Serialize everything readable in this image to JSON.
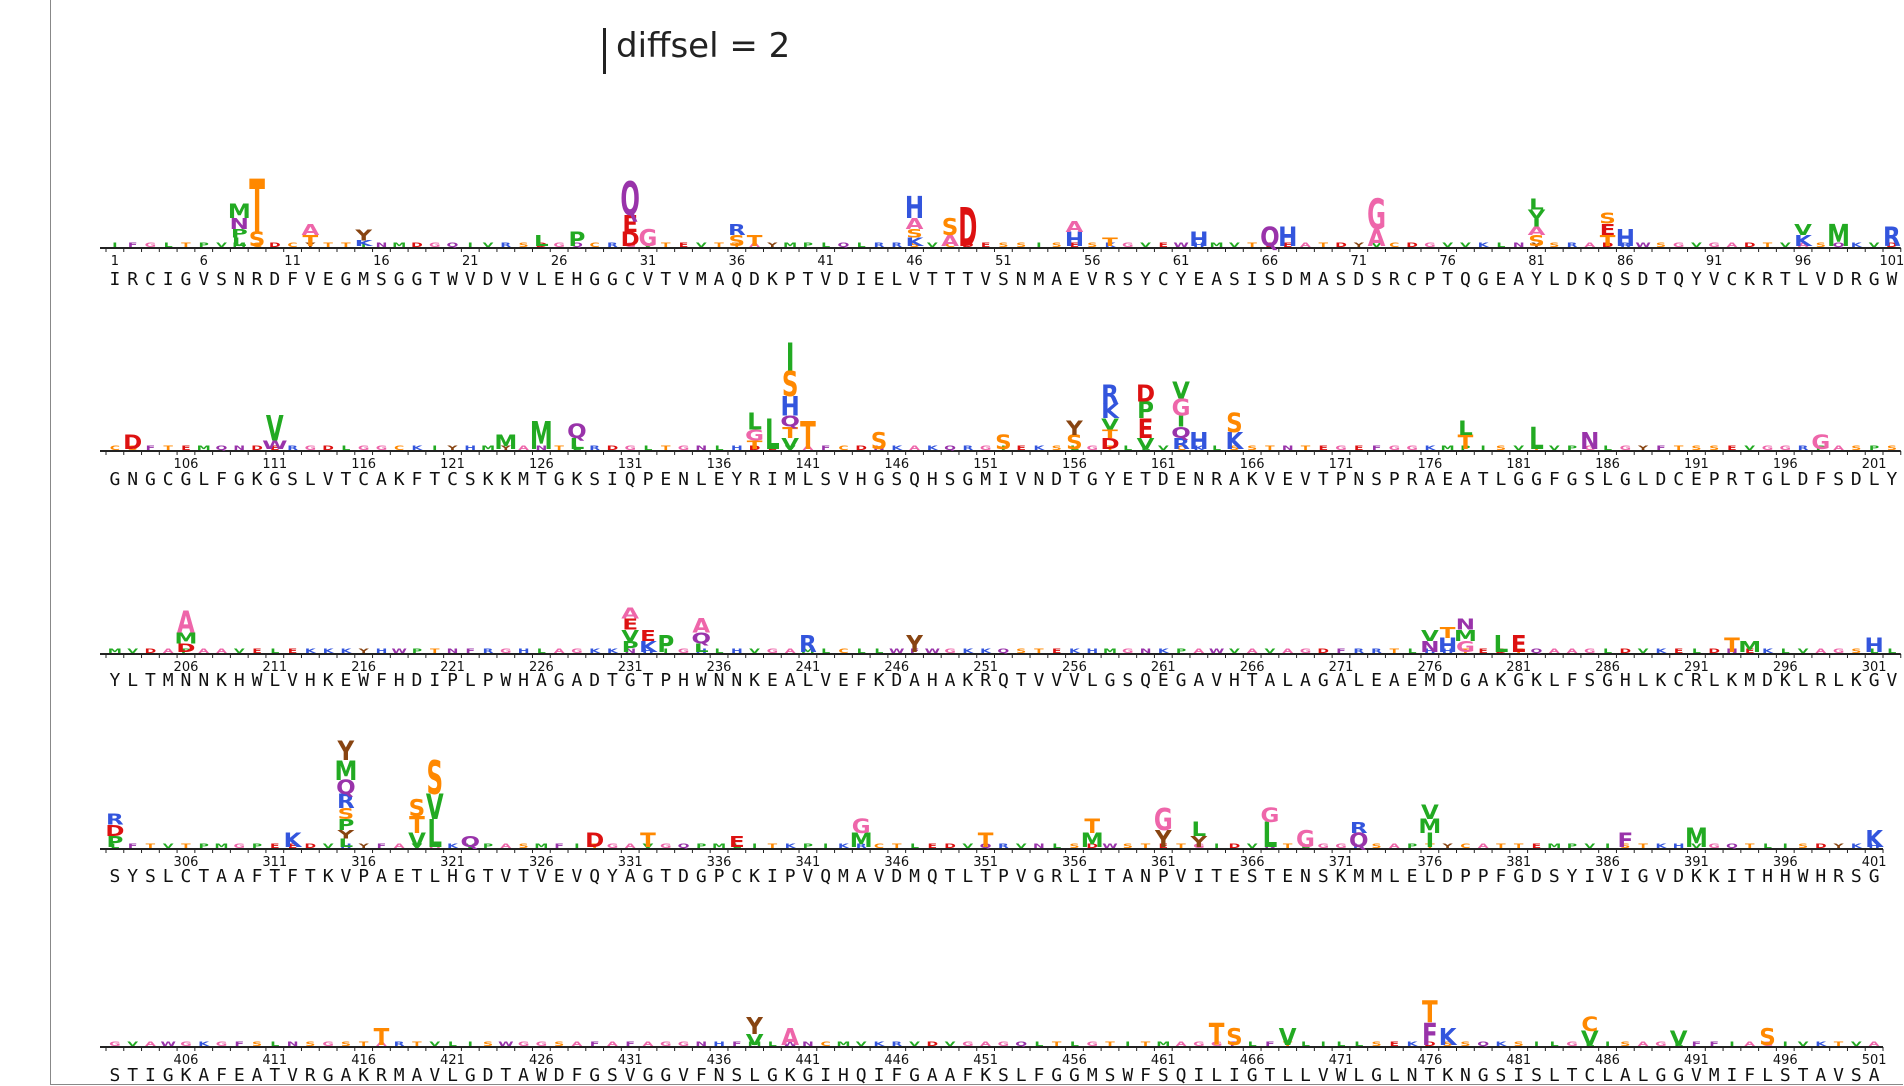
{
  "scale_label": "diffsel = 2",
  "rows": [
    {
      "start": 1,
      "sequence": "IRCIGVSNRDFVEGMSGGTWVDVVLEHGGCVTVMAQDKPTVDIELVTTTVSNMAEVRSYCYEASISDMASDSRCPTQGEAYLDKQSDTQYVCKRTLVDRGW",
      "tick_labels": [
        "1",
        "6",
        "11",
        "16",
        "21",
        "26",
        "31",
        "36",
        "41",
        "46",
        "51",
        "56",
        "61",
        "66",
        "71",
        "76",
        "81",
        "86",
        "91",
        "96",
        "101"
      ]
    },
    {
      "start": 102,
      "sequence": "GNGCGLFGKGSLVTCAKFTCSKKMTGKSIQPENLEYRIMLSVHGSQHSGMIVNDTGYETDENRAKVEVTPNSPRAEATLGGFGSLGLDCEPRTGLDFSDLY",
      "tick_labels": [
        "106",
        "111",
        "116",
        "121",
        "126",
        "131",
        "136",
        "141",
        "146",
        "151",
        "156",
        "161",
        "166",
        "171",
        "176",
        "181",
        "186",
        "191",
        "196",
        "201"
      ]
    },
    {
      "start": 202,
      "sequence": "YLTMNNKHWLVHKEWFHDIPLPWHAGADTGTPHWNNKEALVEFKDAHAKRQTVVVLGSQEGAVHTALAGALEAEMDGAKGKLFSGHLKCRLKMDKLRLKGV",
      "tick_labels": [
        "206",
        "211",
        "216",
        "221",
        "226",
        "231",
        "236",
        "241",
        "246",
        "251",
        "256",
        "261",
        "266",
        "271",
        "276",
        "281",
        "286",
        "291",
        "296",
        "301"
      ]
    },
    {
      "start": 302,
      "sequence": "SYSLCTAAFTFTKVPAETLHGTVTVEVQYAGTDGPCKIPVQMAVDMQTLTPVGRLITANPVITESTENSKMMLELDPPFGDSYIVIGVDKKITHHWHRSG",
      "tick_labels": [
        "306",
        "311",
        "316",
        "321",
        "326",
        "331",
        "336",
        "341",
        "346",
        "351",
        "356",
        "361",
        "366",
        "371",
        "376",
        "381",
        "386",
        "391",
        "396",
        "401"
      ]
    },
    {
      "start": 402,
      "sequence": "STIGKAFEATVRGAKRMAVLGDTAWDFGSVGGVFNSLGKGIHQIFGAAFKSLFGGMSWFSQILIGTLLVWLGLNTKNGSISLTCLALGGVMIFLSTAVSA",
      "tick_labels": [
        "406",
        "411",
        "416",
        "421",
        "426",
        "431",
        "436",
        "441",
        "446",
        "451",
        "456",
        "461",
        "466",
        "471",
        "476",
        "481",
        "486",
        "491",
        "496",
        "501"
      ]
    }
  ],
  "colors": {
    "hydrophobic_green": "#22aa22",
    "basic_blue": "#3355dd",
    "acidic_red": "#dd1111",
    "polar_orange": "#ff8800",
    "aromatic_purple": "#9933aa",
    "glycine_pink": "#ee66aa",
    "misc_brown": "#884411"
  },
  "stacks": [
    {
      "row": 0,
      "pos": 8,
      "letters": [
        "L",
        "P",
        "N",
        "M"
      ],
      "values": [
        0.3,
        0.3,
        0.4,
        0.5
      ]
    },
    {
      "row": 0,
      "pos": 9,
      "letters": [
        "S",
        "T"
      ],
      "values": [
        0.5,
        1.9
      ]
    },
    {
      "row": 0,
      "pos": 12,
      "letters": [
        "T",
        "A"
      ],
      "values": [
        0.4,
        0.4
      ]
    },
    {
      "row": 0,
      "pos": 15,
      "letters": [
        "K",
        "Y"
      ],
      "values": [
        0.2,
        0.4
      ]
    },
    {
      "row": 0,
      "pos": 25,
      "letters": [
        "L"
      ],
      "values": [
        0.4
      ]
    },
    {
      "row": 0,
      "pos": 27,
      "letters": [
        "P"
      ],
      "values": [
        0.5
      ]
    },
    {
      "row": 0,
      "pos": 30,
      "letters": [
        "D",
        "E",
        "Q"
      ],
      "values": [
        0.5,
        0.6,
        1.2
      ]
    },
    {
      "row": 0,
      "pos": 31,
      "letters": [
        "G"
      ],
      "values": [
        0.6
      ]
    },
    {
      "row": 0,
      "pos": 36,
      "letters": [
        "S",
        "R"
      ],
      "values": [
        0.4,
        0.4
      ]
    },
    {
      "row": 0,
      "pos": 37,
      "letters": [
        "T"
      ],
      "values": [
        0.4
      ]
    },
    {
      "row": 0,
      "pos": 46,
      "letters": [
        "K",
        "S",
        "A",
        "H"
      ],
      "values": [
        0.3,
        0.3,
        0.4,
        0.8
      ]
    },
    {
      "row": 0,
      "pos": 48,
      "letters": [
        "A",
        "S"
      ],
      "values": [
        0.4,
        0.6
      ]
    },
    {
      "row": 0,
      "pos": 49,
      "letters": [
        "D"
      ],
      "values": [
        1.4
      ]
    },
    {
      "row": 0,
      "pos": 55,
      "letters": [
        "H",
        "A"
      ],
      "values": [
        0.5,
        0.4
      ]
    },
    {
      "row": 0,
      "pos": 57,
      "letters": [
        "T"
      ],
      "values": [
        0.3
      ]
    },
    {
      "row": 0,
      "pos": 62,
      "letters": [
        "H"
      ],
      "values": [
        0.5
      ]
    },
    {
      "row": 0,
      "pos": 66,
      "letters": [
        "Q"
      ],
      "values": [
        0.7
      ]
    },
    {
      "row": 0,
      "pos": 67,
      "letters": [
        "H"
      ],
      "values": [
        0.7
      ]
    },
    {
      "row": 0,
      "pos": 72,
      "letters": [
        "A",
        "G"
      ],
      "values": [
        0.6,
        1.1
      ]
    },
    {
      "row": 0,
      "pos": 81,
      "letters": [
        "S",
        "A",
        "I",
        "V",
        "L"
      ],
      "values": [
        0.4,
        0.3,
        0.3,
        0.3,
        0.4
      ]
    },
    {
      "row": 0,
      "pos": 85,
      "letters": [
        "T",
        "E",
        "S"
      ],
      "values": [
        0.4,
        0.4,
        0.4
      ]
    },
    {
      "row": 0,
      "pos": 86,
      "letters": [
        "H"
      ],
      "values": [
        0.6
      ]
    },
    {
      "row": 0,
      "pos": 96,
      "letters": [
        "K",
        "V"
      ],
      "values": [
        0.4,
        0.4
      ]
    },
    {
      "row": 0,
      "pos": 98,
      "letters": [
        "M"
      ],
      "values": [
        0.8
      ]
    },
    {
      "row": 0,
      "pos": 101,
      "letters": [
        "R"
      ],
      "values": [
        0.7
      ]
    },
    {
      "row": 1,
      "pos": 103,
      "letters": [
        "D"
      ],
      "values": [
        0.5
      ]
    },
    {
      "row": 1,
      "pos": 111,
      "letters": [
        "W",
        "V"
      ],
      "values": [
        0.3,
        0.9
      ]
    },
    {
      "row": 1,
      "pos": 124,
      "letters": [
        "M"
      ],
      "values": [
        0.5
      ]
    },
    {
      "row": 1,
      "pos": 126,
      "letters": [
        "M"
      ],
      "values": [
        1.0
      ]
    },
    {
      "row": 1,
      "pos": 128,
      "letters": [
        "L",
        "Q"
      ],
      "values": [
        0.4,
        0.5
      ]
    },
    {
      "row": 1,
      "pos": 138,
      "letters": [
        "T",
        "G",
        "L"
      ],
      "values": [
        0.3,
        0.4,
        0.6
      ]
    },
    {
      "row": 1,
      "pos": 139,
      "letters": [
        "L"
      ],
      "values": [
        1.1
      ]
    },
    {
      "row": 1,
      "pos": 140,
      "letters": [
        "V",
        "T",
        "Q",
        "H",
        "S",
        "I"
      ],
      "values": [
        0.4,
        0.4,
        0.4,
        0.7,
        0.9,
        1.0
      ]
    },
    {
      "row": 1,
      "pos": 141,
      "letters": [
        "T"
      ],
      "values": [
        1.0
      ]
    },
    {
      "row": 1,
      "pos": 145,
      "letters": [
        "S"
      ],
      "values": [
        0.6
      ]
    },
    {
      "row": 1,
      "pos": 152,
      "letters": [
        "S"
      ],
      "values": [
        0.5
      ]
    },
    {
      "row": 1,
      "pos": 156,
      "letters": [
        "S",
        "Y"
      ],
      "values": [
        0.5,
        0.5
      ]
    },
    {
      "row": 1,
      "pos": 158,
      "letters": [
        "D",
        "T",
        "V",
        "K",
        "R"
      ],
      "values": [
        0.4,
        0.3,
        0.4,
        0.5,
        0.7
      ]
    },
    {
      "row": 1,
      "pos": 160,
      "letters": [
        "V",
        "E",
        "P",
        "D"
      ],
      "values": [
        0.4,
        0.7,
        0.6,
        0.6
      ]
    },
    {
      "row": 1,
      "pos": 162,
      "letters": [
        "R",
        "Q",
        "I",
        "G",
        "V"
      ],
      "values": [
        0.4,
        0.4,
        0.4,
        0.6,
        0.6
      ]
    },
    {
      "row": 1,
      "pos": 163,
      "letters": [
        "H"
      ],
      "values": [
        0.6
      ]
    },
    {
      "row": 1,
      "pos": 165,
      "letters": [
        "K",
        "S"
      ],
      "values": [
        0.6,
        0.7
      ]
    },
    {
      "row": 1,
      "pos": 178,
      "letters": [
        "T",
        "L"
      ],
      "values": [
        0.5,
        0.5
      ]
    },
    {
      "row": 1,
      "pos": 182,
      "letters": [
        "L"
      ],
      "values": [
        0.8
      ]
    },
    {
      "row": 1,
      "pos": 185,
      "letters": [
        "N"
      ],
      "values": [
        0.6
      ]
    },
    {
      "row": 1,
      "pos": 198,
      "letters": [
        "G"
      ],
      "values": [
        0.5
      ]
    },
    {
      "row": 2,
      "pos": 206,
      "letters": [
        "D",
        "M",
        "A"
      ],
      "values": [
        0.3,
        0.4,
        0.8
      ]
    },
    {
      "row": 2,
      "pos": 231,
      "letters": [
        "P",
        "V",
        "E",
        "A"
      ],
      "values": [
        0.4,
        0.4,
        0.4,
        0.4
      ]
    },
    {
      "row": 2,
      "pos": 232,
      "letters": [
        "K",
        "E"
      ],
      "values": [
        0.4,
        0.4
      ]
    },
    {
      "row": 2,
      "pos": 233,
      "letters": [
        "P"
      ],
      "values": [
        0.6
      ]
    },
    {
      "row": 2,
      "pos": 235,
      "letters": [
        "L",
        "Q",
        "A"
      ],
      "values": [
        0.3,
        0.4,
        0.5
      ]
    },
    {
      "row": 2,
      "pos": 241,
      "letters": [
        "R"
      ],
      "values": [
        0.6
      ]
    },
    {
      "row": 2,
      "pos": 247,
      "letters": [
        "Y"
      ],
      "values": [
        0.6
      ]
    },
    {
      "row": 2,
      "pos": 276,
      "letters": [
        "N",
        "V"
      ],
      "values": [
        0.4,
        0.4
      ]
    },
    {
      "row": 2,
      "pos": 277,
      "letters": [
        "H",
        "T"
      ],
      "values": [
        0.5,
        0.4
      ]
    },
    {
      "row": 2,
      "pos": 278,
      "letters": [
        "G",
        "M",
        "N"
      ],
      "values": [
        0.4,
        0.4,
        0.4
      ]
    },
    {
      "row": 2,
      "pos": 280,
      "letters": [
        "L"
      ],
      "values": [
        0.6
      ]
    },
    {
      "row": 2,
      "pos": 281,
      "letters": [
        "E"
      ],
      "values": [
        0.6
      ]
    },
    {
      "row": 2,
      "pos": 293,
      "letters": [
        "T"
      ],
      "values": [
        0.5
      ]
    },
    {
      "row": 2,
      "pos": 294,
      "letters": [
        "M"
      ],
      "values": [
        0.4
      ]
    },
    {
      "row": 2,
      "pos": 301,
      "letters": [
        "H"
      ],
      "values": [
        0.5
      ]
    },
    {
      "row": 3,
      "pos": 302,
      "letters": [
        "P",
        "D",
        "R"
      ],
      "values": [
        0.4,
        0.4,
        0.4
      ]
    },
    {
      "row": 3,
      "pos": 312,
      "letters": [
        "K"
      ],
      "values": [
        0.5
      ]
    },
    {
      "row": 3,
      "pos": 315,
      "letters": [
        "L",
        "Y",
        "P",
        "S",
        "R",
        "Q",
        "M",
        "Y"
      ],
      "values": [
        0.3,
        0.3,
        0.4,
        0.4,
        0.5,
        0.5,
        0.7,
        0.7
      ]
    },
    {
      "row": 3,
      "pos": 319,
      "letters": [
        "V",
        "T",
        "S"
      ],
      "values": [
        0.5,
        0.6,
        0.6
      ]
    },
    {
      "row": 3,
      "pos": 320,
      "letters": [
        "L",
        "V",
        "S"
      ],
      "values": [
        1.0,
        0.9,
        1.2
      ]
    },
    {
      "row": 3,
      "pos": 322,
      "letters": [
        "Q"
      ],
      "values": [
        0.4
      ]
    },
    {
      "row": 3,
      "pos": 329,
      "letters": [
        "D"
      ],
      "values": [
        0.5
      ]
    },
    {
      "row": 3,
      "pos": 332,
      "letters": [
        "T"
      ],
      "values": [
        0.5
      ]
    },
    {
      "row": 3,
      "pos": 337,
      "letters": [
        "E"
      ],
      "values": [
        0.4
      ]
    },
    {
      "row": 3,
      "pos": 344,
      "letters": [
        "M",
        "G"
      ],
      "values": [
        0.5,
        0.5
      ]
    },
    {
      "row": 3,
      "pos": 351,
      "letters": [
        "T"
      ],
      "values": [
        0.5
      ]
    },
    {
      "row": 3,
      "pos": 357,
      "letters": [
        "M",
        "T"
      ],
      "values": [
        0.5,
        0.5
      ]
    },
    {
      "row": 3,
      "pos": 361,
      "letters": [
        "Y",
        "G"
      ],
      "values": [
        0.6,
        0.8
      ]
    },
    {
      "row": 3,
      "pos": 363,
      "letters": [
        "Y",
        "L"
      ],
      "values": [
        0.4,
        0.5
      ]
    },
    {
      "row": 3,
      "pos": 367,
      "letters": [
        "L",
        "G"
      ],
      "values": [
        0.9,
        0.5
      ]
    },
    {
      "row": 3,
      "pos": 369,
      "letters": [
        "G"
      ],
      "values": [
        0.6
      ]
    },
    {
      "row": 3,
      "pos": 372,
      "letters": [
        "Q",
        "R"
      ],
      "values": [
        0.5,
        0.4
      ]
    },
    {
      "row": 3,
      "pos": 376,
      "letters": [
        "I",
        "M",
        "V"
      ],
      "values": [
        0.5,
        0.5,
        0.5
      ]
    },
    {
      "row": 3,
      "pos": 387,
      "letters": [
        "F"
      ],
      "values": [
        0.5
      ]
    },
    {
      "row": 3,
      "pos": 391,
      "letters": [
        "M"
      ],
      "values": [
        0.7
      ]
    },
    {
      "row": 3,
      "pos": 401,
      "letters": [
        "K"
      ],
      "values": [
        0.6
      ]
    },
    {
      "row": 4,
      "pos": 417,
      "letters": [
        "T"
      ],
      "values": [
        0.6
      ]
    },
    {
      "row": 4,
      "pos": 438,
      "letters": [
        "V",
        "Y"
      ],
      "values": [
        0.4,
        0.6
      ]
    },
    {
      "row": 4,
      "pos": 440,
      "letters": [
        "A"
      ],
      "values": [
        0.6
      ]
    },
    {
      "row": 4,
      "pos": 464,
      "letters": [
        "T"
      ],
      "values": [
        0.8
      ]
    },
    {
      "row": 4,
      "pos": 465,
      "letters": [
        "S"
      ],
      "values": [
        0.6
      ]
    },
    {
      "row": 4,
      "pos": 468,
      "letters": [
        "V"
      ],
      "values": [
        0.6
      ]
    },
    {
      "row": 4,
      "pos": 476,
      "letters": [
        "F",
        "T"
      ],
      "values": [
        0.8,
        0.8
      ]
    },
    {
      "row": 4,
      "pos": 477,
      "letters": [
        "K"
      ],
      "values": [
        0.6
      ]
    },
    {
      "row": 4,
      "pos": 485,
      "letters": [
        "V",
        "C"
      ],
      "values": [
        0.5,
        0.5
      ]
    },
    {
      "row": 4,
      "pos": 490,
      "letters": [
        "V"
      ],
      "values": [
        0.5
      ]
    },
    {
      "row": 4,
      "pos": 495,
      "letters": [
        "S"
      ],
      "values": [
        0.6
      ]
    }
  ]
}
